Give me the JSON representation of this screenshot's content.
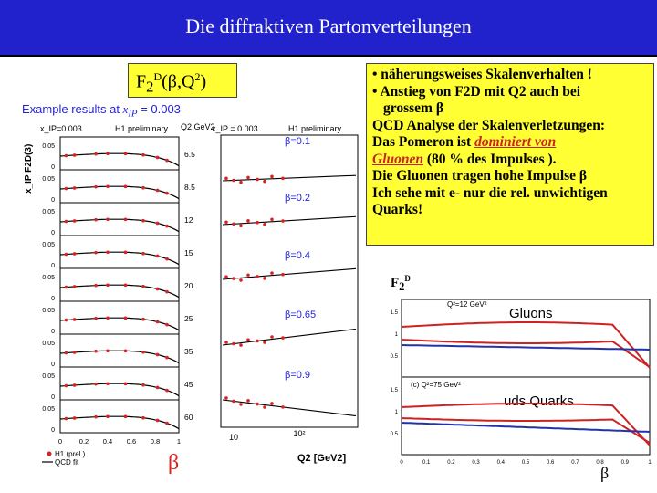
{
  "slide": {
    "title": "Die diffraktiven Partonverteilungen",
    "f2_box": {
      "label": "F",
      "sub": "2",
      "sup": "D",
      "rest_open": "(",
      "beta": "β",
      "rest_mid": ",Q",
      "q_sup": "2",
      "rest_close": ")"
    },
    "example": {
      "prefix": "Example results at ",
      "var": "x",
      "var_sub": "IP",
      "suffix": " = 0.003"
    },
    "notes": {
      "l1": "• näherungsweises Skalenverhalten !",
      "l2": "• Anstieg von F2D mit Q2 auch bei",
      "l3": "grossem β",
      "l4": "QCD Analyse der Skalenverletzungen:",
      "l5a": "Das Pomeron ist ",
      "l5b": "dominiert von",
      "l6a": "Gluonen",
      "l6b": " (80 % des Impulses ).",
      "l7": "Die Gluonen tragen hohe Impulse β",
      "l8": "Ich sehe mit e- nur die rel. unwichtigen",
      "l9": "Quarks!"
    },
    "beta_left": "β",
    "beta_right": "β",
    "f2d_small": {
      "label": "F",
      "sub": "2",
      "sup": "D"
    },
    "accent_blue": "#2222cc",
    "box_yellow": "#ffff33"
  },
  "chart_data": [
    {
      "type": "scatter",
      "title": "H1 preliminary",
      "header_left": "x_IP=0.003",
      "ylabel": "x_IP F2D(3)",
      "xlabel": "β",
      "x_ticks": [
        "0",
        "0.2",
        "0.4",
        "0.6",
        "0.8",
        "1"
      ],
      "q2_header": "Q2 GeV2",
      "y_ticks": [
        "0",
        "0.05"
      ],
      "panels_q2": [
        "6.5",
        "8.5",
        "12",
        "15",
        "20",
        "25",
        "35",
        "45",
        "60"
      ],
      "legend": [
        "H1 (prel.)",
        "QCD fit"
      ]
    },
    {
      "type": "scatter",
      "title": "H1 preliminary",
      "header_left": "x_IP = 0.003",
      "xlabel": "Q2 [GeV2]",
      "x_ticks": [
        "10",
        "10²"
      ],
      "xscale": "log",
      "series_labels": [
        "β=0.1",
        "β=0.2",
        "β=0.4",
        "β=0.65",
        "β=0.9"
      ]
    },
    {
      "type": "line",
      "x_ticks": [
        "0",
        "0.1",
        "0.2",
        "0.3",
        "0.4",
        "0.5",
        "0.6",
        "0.7",
        "0.8",
        "0.9",
        "1"
      ],
      "panel_a_label": "Q²=12 GeV²",
      "panel_b_label": "(c) Q²=75 GeV²",
      "y_ticks_a": [
        "1.5",
        "1",
        "0.5"
      ],
      "y_ticks_b": [
        "1.5",
        "1",
        "0.5"
      ],
      "series": [
        {
          "name": "Gluons",
          "color": "#cc2222"
        },
        {
          "name": "uds Quarks",
          "color": "#2233aa"
        }
      ]
    }
  ]
}
